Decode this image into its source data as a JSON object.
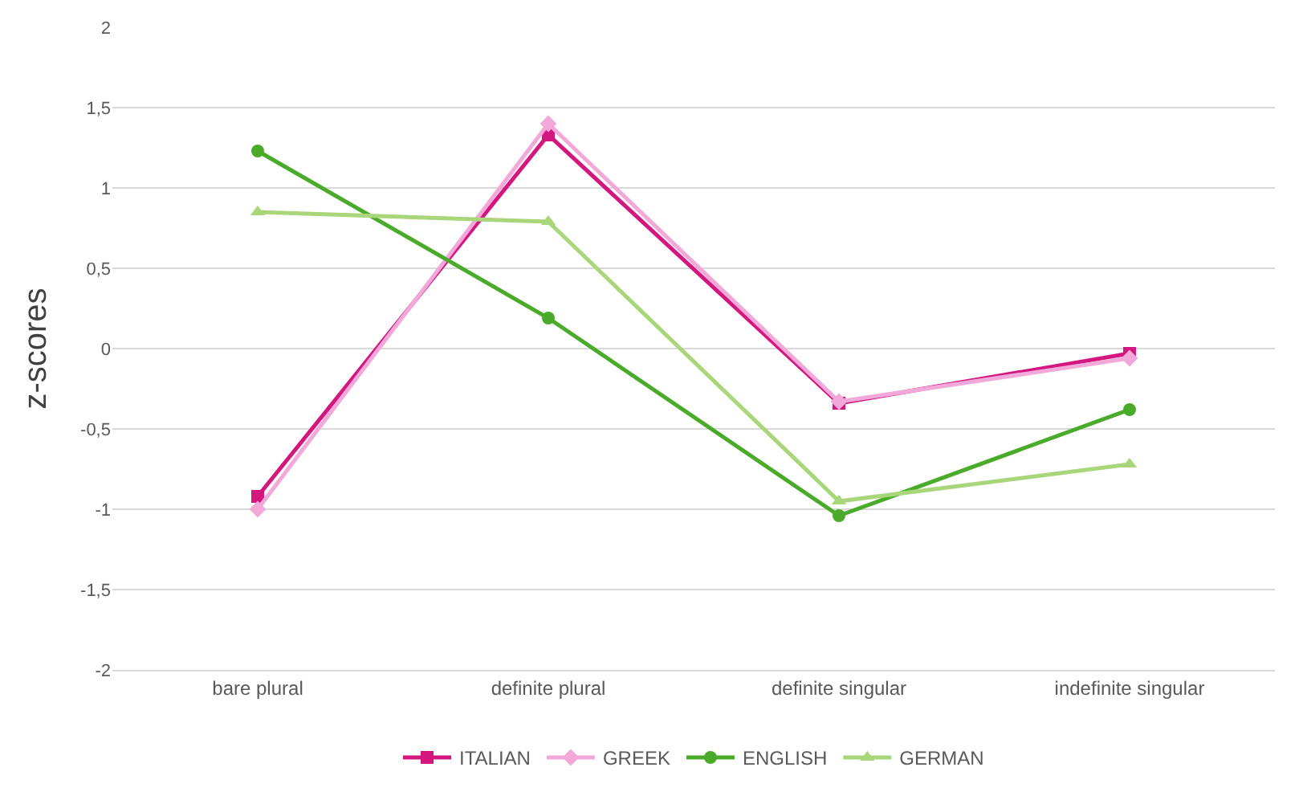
{
  "chart_data": {
    "type": "line",
    "ylabel": "z-scores",
    "categories": [
      "bare plural",
      "definite plural",
      "definite singular",
      "indefinite singular"
    ],
    "series": [
      {
        "name": "ITALIAN",
        "color": "#d4177f",
        "marker": "square",
        "values": [
          -0.92,
          1.33,
          -0.34,
          -0.03
        ]
      },
      {
        "name": "GREEK",
        "color": "#f2a8d8",
        "marker": "diamond",
        "values": [
          -1.0,
          1.4,
          -0.33,
          -0.06
        ]
      },
      {
        "name": "ENGLISH",
        "color": "#4aab2a",
        "marker": "circle",
        "values": [
          1.23,
          0.19,
          -1.04,
          -0.38
        ]
      },
      {
        "name": "GERMAN",
        "color": "#a9d67a",
        "marker": "triangle",
        "values": [
          0.85,
          0.79,
          -0.95,
          -0.72
        ]
      }
    ],
    "ylim": [
      -2,
      2
    ],
    "yticks": [
      {
        "value": -2,
        "label": "-2"
      },
      {
        "value": -1.5,
        "label": "-1,5"
      },
      {
        "value": -1,
        "label": "-1"
      },
      {
        "value": -0.5,
        "label": "-0,5"
      },
      {
        "value": 0,
        "label": "0"
      },
      {
        "value": 0.5,
        "label": "0,5"
      },
      {
        "value": 1,
        "label": "1"
      },
      {
        "value": 1.5,
        "label": "1,5"
      },
      {
        "value": 2,
        "label": "2"
      }
    ],
    "grid": "y",
    "legend": "bottom",
    "line_style": "solid"
  }
}
